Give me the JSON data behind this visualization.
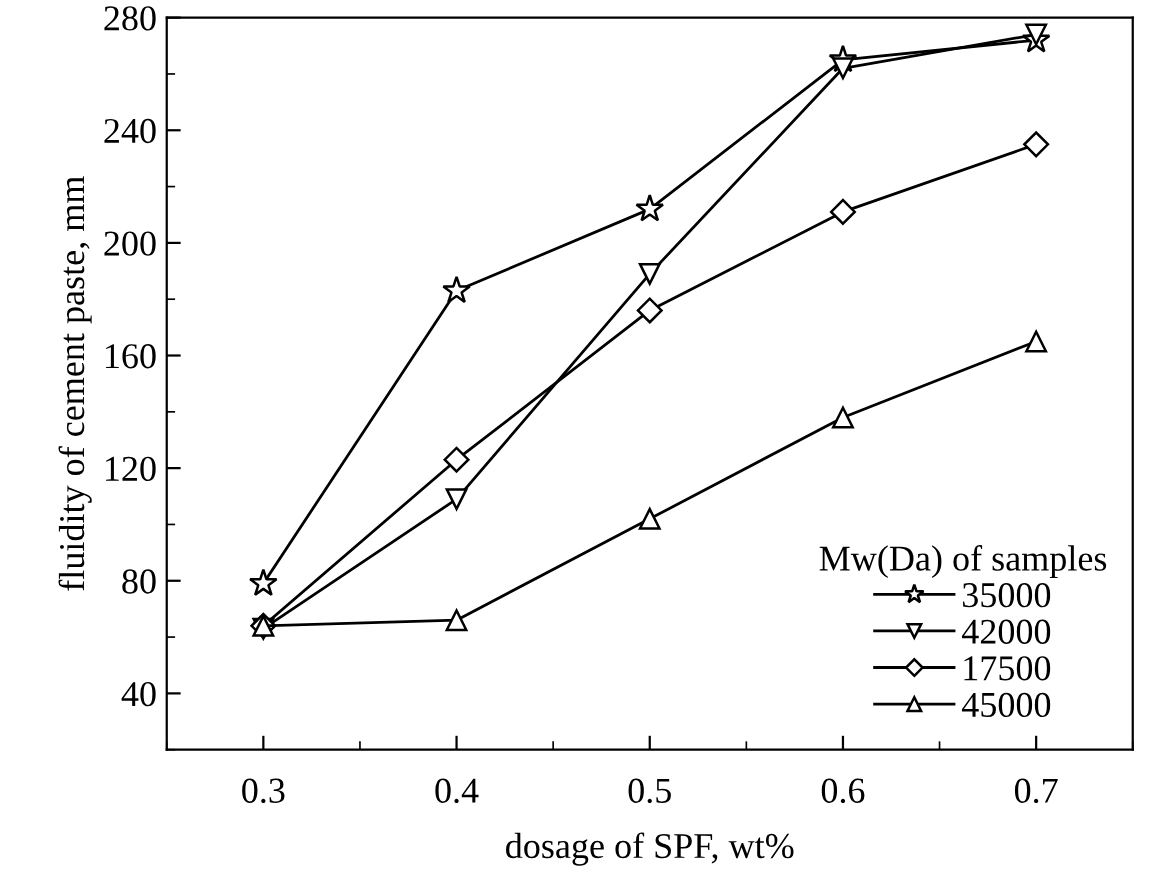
{
  "chart_data": {
    "type": "line",
    "xlabel": "dosage of SPF, wt%",
    "ylabel": "fluidity of cement paste, mm",
    "legend_title": "Mw(Da) of samples",
    "legend": "bottom right",
    "grid": false,
    "x": [
      0.3,
      0.4,
      0.5,
      0.6,
      0.7
    ],
    "xlim": [
      0.25,
      0.75
    ],
    "xticks": [
      0.3,
      0.4,
      0.5,
      0.6,
      0.7
    ],
    "ylim": [
      20,
      280
    ],
    "yticks": [
      40,
      80,
      120,
      160,
      200,
      240,
      280
    ],
    "series": [
      {
        "name": "35000",
        "color": "#000000",
        "marker": "star",
        "values": [
          79,
          183,
          212,
          265,
          272
        ]
      },
      {
        "name": "42000",
        "color": "#000000",
        "marker": "triangle_down",
        "values": [
          63,
          109,
          189,
          262,
          274
        ]
      },
      {
        "name": "17500",
        "color": "#000000",
        "marker": "diamond",
        "values": [
          64,
          123,
          176,
          211,
          235
        ]
      },
      {
        "name": "45000",
        "color": "#000000",
        "marker": "triangle",
        "values": [
          64,
          66,
          102,
          138,
          165
        ]
      }
    ]
  }
}
